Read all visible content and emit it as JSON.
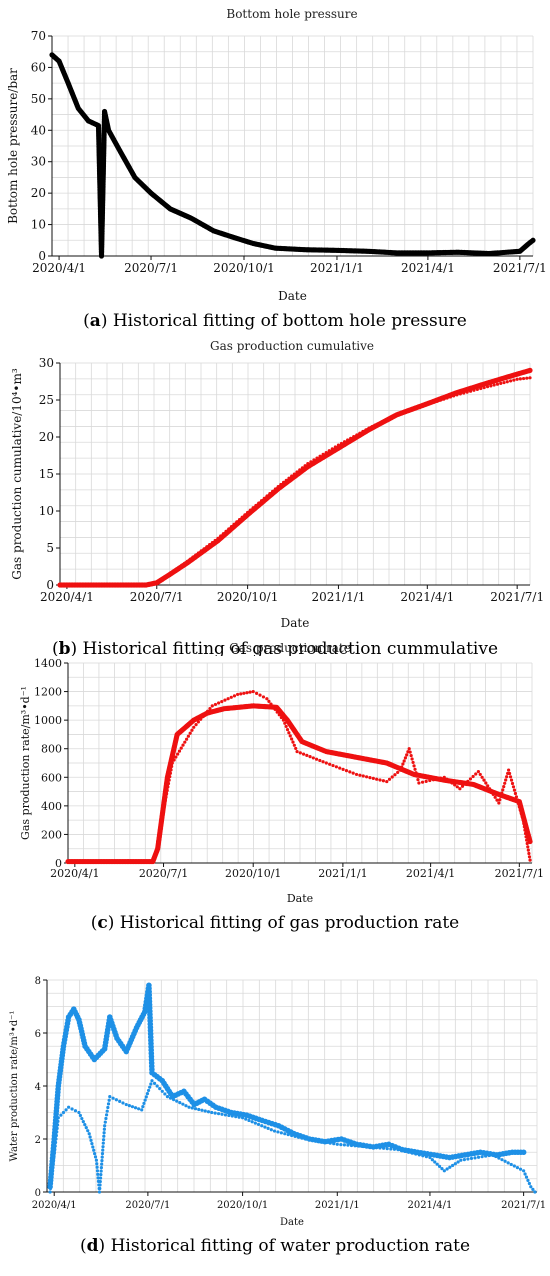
{
  "chart_data": [
    {
      "id": "a",
      "type": "scatter",
      "title": "Bottom hole pressure",
      "xlabel": "Date",
      "ylabel": "Bottom hole pressure/bar",
      "ylim": [
        0,
        70
      ],
      "yticks": [
        0,
        10,
        20,
        30,
        40,
        50,
        60,
        70
      ],
      "xlim": [
        "2020-03-25",
        "2021-07-14"
      ],
      "xticks": [
        "2020/4/1",
        "2020/7/1",
        "2020/10/1",
        "2021/1/1",
        "2021/4/1",
        "2021/7/1"
      ],
      "caption_letter": "a",
      "caption_text": " Historical fitting of bottom hole pressure",
      "grid": true,
      "series": [
        {
          "color": "#000000",
          "marker": "dense",
          "points": [
            [
              "2020-03-25",
              64
            ],
            [
              "2020-04-01",
              62
            ],
            [
              "2020-04-10",
              55
            ],
            [
              "2020-04-20",
              47
            ],
            [
              "2020-04-30",
              43
            ],
            [
              "2020-05-10",
              41.5
            ],
            [
              "2020-05-13",
              0
            ],
            [
              "2020-05-14",
              15
            ],
            [
              "2020-05-15",
              30
            ],
            [
              "2020-05-16",
              46
            ],
            [
              "2020-05-20",
              40
            ],
            [
              "2020-06-01",
              33
            ],
            [
              "2020-06-15",
              25
            ],
            [
              "2020-07-01",
              20
            ],
            [
              "2020-07-20",
              15
            ],
            [
              "2020-08-10",
              12
            ],
            [
              "2020-09-01",
              8
            ],
            [
              "2020-09-20",
              6
            ],
            [
              "2020-10-10",
              4
            ],
            [
              "2020-11-01",
              2.5
            ],
            [
              "2020-12-01",
              2
            ],
            [
              "2021-01-01",
              1.8
            ],
            [
              "2021-02-01",
              1.5
            ],
            [
              "2021-03-01",
              1
            ],
            [
              "2021-04-01",
              1
            ],
            [
              "2021-05-01",
              1.2
            ],
            [
              "2021-06-01",
              0.8
            ],
            [
              "2021-07-01",
              1.5
            ],
            [
              "2021-07-10",
              4
            ],
            [
              "2021-07-14",
              5
            ]
          ]
        }
      ]
    },
    {
      "id": "b",
      "type": "scatter",
      "title": "Gas production cumulative",
      "xlabel": "Date",
      "ylabel": "Gas production cumulative/10⁴•m³",
      "ylim": [
        0,
        30
      ],
      "yticks": [
        0,
        5,
        10,
        15,
        20,
        25,
        30
      ],
      "xlim": [
        "2020-03-25",
        "2021-07-14"
      ],
      "xticks": [
        "2020/4/1",
        "2020/7/1",
        "2020/10/1",
        "2021/1/1",
        "2021/4/1",
        "2021/7/1"
      ],
      "caption_letter": "b",
      "caption_text": " Historical fitting of gas production cummulative",
      "grid": true,
      "series": [
        {
          "color": "#ee1111",
          "marker": "dense",
          "points": [
            [
              "2020-03-25",
              0
            ],
            [
              "2020-06-20",
              0
            ],
            [
              "2020-07-01",
              0.3
            ],
            [
              "2020-07-15",
              1.5
            ],
            [
              "2020-08-01",
              3
            ],
            [
              "2020-09-01",
              6
            ],
            [
              "2020-10-01",
              9.5
            ],
            [
              "2020-11-01",
              13
            ],
            [
              "2020-12-01",
              16
            ],
            [
              "2021-01-01",
              18.5
            ],
            [
              "2021-02-01",
              21
            ],
            [
              "2021-03-01",
              23
            ],
            [
              "2021-04-01",
              24.5
            ],
            [
              "2021-05-01",
              26
            ],
            [
              "2021-06-01",
              27.3
            ],
            [
              "2021-07-01",
              28.5
            ],
            [
              "2021-07-14",
              29
            ]
          ]
        },
        {
          "color": "#ee1111",
          "marker": "dotted",
          "points": [
            [
              "2020-03-25",
              0
            ],
            [
              "2020-06-20",
              0
            ],
            [
              "2020-07-01",
              0.3
            ],
            [
              "2020-07-15",
              1.6
            ],
            [
              "2020-08-01",
              3.2
            ],
            [
              "2020-09-01",
              6.3
            ],
            [
              "2020-10-01",
              9.8
            ],
            [
              "2020-11-01",
              13.3
            ],
            [
              "2020-12-01",
              16.4
            ],
            [
              "2021-01-01",
              18.9
            ],
            [
              "2021-02-01",
              21.2
            ],
            [
              "2021-03-01",
              23
            ],
            [
              "2021-04-01",
              24.4
            ],
            [
              "2021-05-01",
              25.7
            ],
            [
              "2021-06-01",
              26.8
            ],
            [
              "2021-07-01",
              27.8
            ],
            [
              "2021-07-14",
              28
            ]
          ]
        }
      ]
    },
    {
      "id": "c",
      "type": "scatter",
      "title": "Gas production rate",
      "xlabel": "Date",
      "ylabel": "Gas production rate/m³•d⁻¹",
      "ylim": [
        0,
        1400
      ],
      "yticks": [
        0,
        200,
        400,
        600,
        800,
        1000,
        1200,
        1400
      ],
      "xlim": [
        "2020-03-25",
        "2021-07-14"
      ],
      "xticks": [
        "2020/4/1",
        "2020/7/1",
        "2020/10/1",
        "2021/1/1",
        "2021/4/1",
        "2021/7/1"
      ],
      "caption_letter": "c",
      "caption_text": " Historical fitting of gas production rate",
      "grid": true,
      "series": [
        {
          "color": "#ee1111",
          "marker": "dense",
          "points": [
            [
              "2020-03-25",
              10
            ],
            [
              "2020-06-20",
              10
            ],
            [
              "2020-06-25",
              100
            ],
            [
              "2020-07-05",
              600
            ],
            [
              "2020-07-15",
              900
            ],
            [
              "2020-08-01",
              1000
            ],
            [
              "2020-08-15",
              1050
            ],
            [
              "2020-09-01",
              1080
            ],
            [
              "2020-10-01",
              1100
            ],
            [
              "2020-10-25",
              1090
            ],
            [
              "2020-11-05",
              1000
            ],
            [
              "2020-11-20",
              850
            ],
            [
              "2020-12-15",
              780
            ],
            [
              "2021-01-15",
              740
            ],
            [
              "2021-02-15",
              700
            ],
            [
              "2021-03-15",
              620
            ],
            [
              "2021-04-15",
              580
            ],
            [
              "2021-05-15",
              550
            ],
            [
              "2021-06-10",
              480
            ],
            [
              "2021-07-01",
              430
            ],
            [
              "2021-07-08",
              250
            ],
            [
              "2021-07-12",
              150
            ]
          ]
        },
        {
          "color": "#ee1111",
          "marker": "dotted",
          "points": [
            [
              "2020-06-25",
              150
            ],
            [
              "2020-07-10",
              700
            ],
            [
              "2020-08-01",
              950
            ],
            [
              "2020-08-20",
              1100
            ],
            [
              "2020-09-15",
              1180
            ],
            [
              "2020-10-01",
              1200
            ],
            [
              "2020-10-15",
              1150
            ],
            [
              "2020-11-01",
              1000
            ],
            [
              "2020-11-15",
              780
            ],
            [
              "2020-12-15",
              700
            ],
            [
              "2021-01-15",
              620
            ],
            [
              "2021-02-15",
              570
            ],
            [
              "2021-03-01",
              650
            ],
            [
              "2021-03-10",
              800
            ],
            [
              "2021-03-20",
              560
            ],
            [
              "2021-04-15",
              600
            ],
            [
              "2021-05-01",
              520
            ],
            [
              "2021-05-20",
              640
            ],
            [
              "2021-06-10",
              420
            ],
            [
              "2021-06-20",
              650
            ],
            [
              "2021-07-05",
              300
            ],
            [
              "2021-07-12",
              20
            ]
          ]
        }
      ]
    },
    {
      "id": "d",
      "type": "scatter",
      "title": "",
      "xlabel": "Date",
      "ylabel": "Water production rate/m³•d⁻¹",
      "ylim": [
        0,
        8
      ],
      "yticks": [
        0,
        2,
        4,
        6,
        8
      ],
      "xlim": [
        "2020-03-25",
        "2021-07-14"
      ],
      "xticks": [
        "2020/4/1",
        "2020/7/1",
        "2020/10/1",
        "2021/1/1",
        "2021/4/1",
        "2021/7/1"
      ],
      "caption_letter": "d",
      "caption_text": " Historical fitting of water production rate",
      "grid": true,
      "series": [
        {
          "color": "#1e90e6",
          "marker": "dot",
          "points": [
            [
              "2020-03-28",
              0.2
            ],
            [
              "2020-04-01",
              2
            ],
            [
              "2020-04-05",
              4
            ],
            [
              "2020-04-10",
              5.5
            ],
            [
              "2020-04-15",
              6.6
            ],
            [
              "2020-04-20",
              6.9
            ],
            [
              "2020-04-25",
              6.5
            ],
            [
              "2020-05-01",
              5.5
            ],
            [
              "2020-05-10",
              5
            ],
            [
              "2020-05-20",
              5.4
            ],
            [
              "2020-05-25",
              6.6
            ],
            [
              "2020-06-01",
              5.8
            ],
            [
              "2020-06-10",
              5.3
            ],
            [
              "2020-06-20",
              6.2
            ],
            [
              "2020-06-28",
              6.8
            ],
            [
              "2020-07-02",
              7.8
            ],
            [
              "2020-07-05",
              4.5
            ],
            [
              "2020-07-15",
              4.2
            ],
            [
              "2020-07-25",
              3.6
            ],
            [
              "2020-08-05",
              3.8
            ],
            [
              "2020-08-15",
              3.3
            ],
            [
              "2020-08-25",
              3.5
            ],
            [
              "2020-09-05",
              3.2
            ],
            [
              "2020-09-20",
              3
            ],
            [
              "2020-10-05",
              2.9
            ],
            [
              "2020-10-20",
              2.7
            ],
            [
              "2020-11-05",
              2.5
            ],
            [
              "2020-11-20",
              2.2
            ],
            [
              "2020-12-05",
              2
            ],
            [
              "2020-12-20",
              1.9
            ],
            [
              "2021-01-05",
              2
            ],
            [
              "2021-01-20",
              1.8
            ],
            [
              "2021-02-05",
              1.7
            ],
            [
              "2021-02-20",
              1.8
            ],
            [
              "2021-03-05",
              1.6
            ],
            [
              "2021-03-20",
              1.5
            ],
            [
              "2021-04-05",
              1.4
            ],
            [
              "2021-04-20",
              1.3
            ],
            [
              "2021-05-05",
              1.4
            ],
            [
              "2021-05-20",
              1.5
            ],
            [
              "2021-06-05",
              1.4
            ],
            [
              "2021-06-20",
              1.5
            ],
            [
              "2021-07-01",
              1.5
            ]
          ]
        },
        {
          "color": "#1e90e6",
          "marker": "dotted",
          "points": [
            [
              "2020-03-28",
              0
            ],
            [
              "2020-04-05",
              2.8
            ],
            [
              "2020-04-15",
              3.2
            ],
            [
              "2020-04-25",
              3
            ],
            [
              "2020-05-05",
              2.2
            ],
            [
              "2020-05-12",
              1.2
            ],
            [
              "2020-05-15",
              0
            ],
            [
              "2020-05-20",
              2.5
            ],
            [
              "2020-05-25",
              3.6
            ],
            [
              "2020-06-10",
              3.3
            ],
            [
              "2020-06-25",
              3.1
            ],
            [
              "2020-07-05",
              4.2
            ],
            [
              "2020-07-20",
              3.6
            ],
            [
              "2020-08-10",
              3.2
            ],
            [
              "2020-09-01",
              3
            ],
            [
              "2020-10-01",
              2.8
            ],
            [
              "2020-11-01",
              2.3
            ],
            [
              "2020-12-01",
              2
            ],
            [
              "2021-01-01",
              1.8
            ],
            [
              "2021-02-01",
              1.7
            ],
            [
              "2021-03-01",
              1.6
            ],
            [
              "2021-04-01",
              1.3
            ],
            [
              "2021-04-15",
              0.8
            ],
            [
              "2021-05-01",
              1.2
            ],
            [
              "2021-06-01",
              1.4
            ],
            [
              "2021-07-01",
              0.8
            ],
            [
              "2021-07-08",
              0.2
            ],
            [
              "2021-07-12",
              0
            ]
          ]
        }
      ]
    }
  ]
}
